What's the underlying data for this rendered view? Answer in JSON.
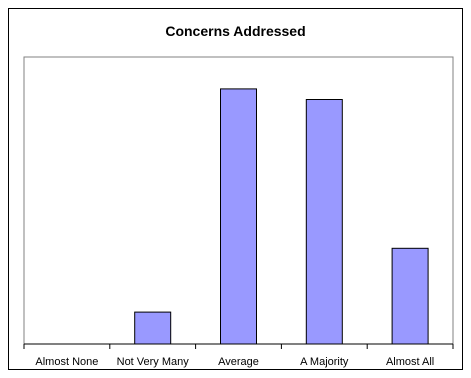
{
  "chart_data": {
    "type": "bar",
    "title": "Concerns Addressed",
    "xlabel": "",
    "ylabel": "",
    "categories": [
      "Almost None",
      "Not Very Many",
      "Average",
      "A Majority",
      "Almost All"
    ],
    "values": [
      0,
      3,
      24,
      23,
      9
    ],
    "ylim": [
      0,
      27
    ],
    "grid": false,
    "legend": "none",
    "colors": {
      "bar_fill": "#9999ff",
      "bar_stroke": "#000000",
      "plot_border": "#808080",
      "background": "#ffffff"
    }
  }
}
